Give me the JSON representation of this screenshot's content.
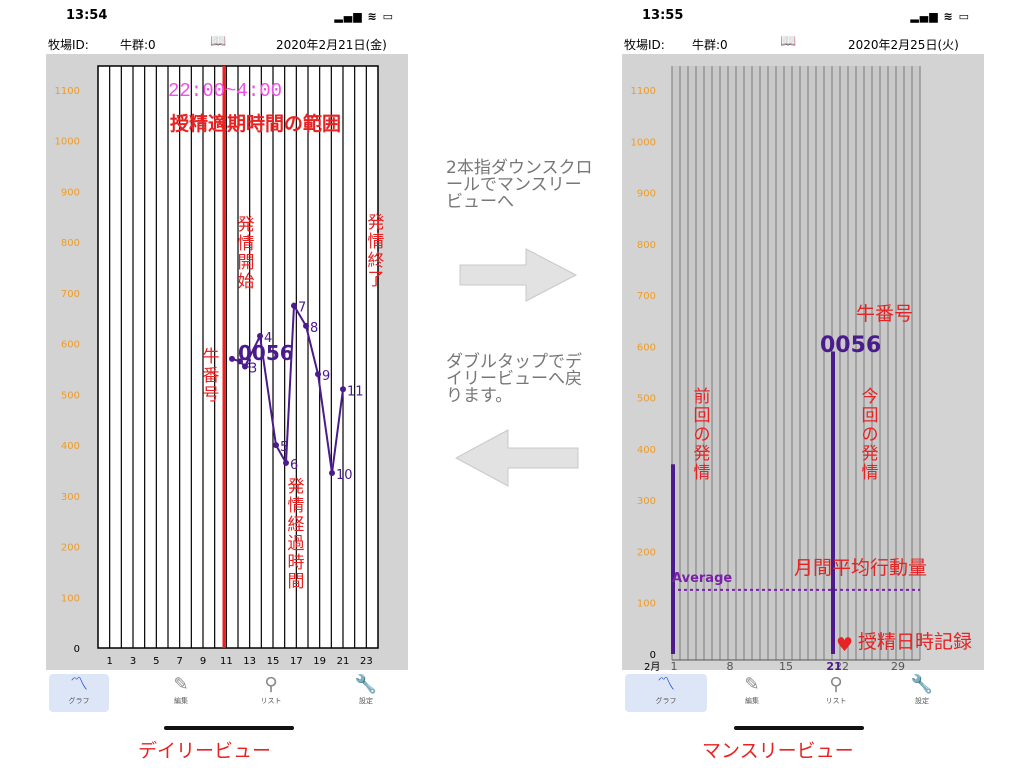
{
  "left_phone": {
    "status_time": "13:54",
    "farm_label": "牧場ID:",
    "herd_label": "牛群:0",
    "date": "2020年2月21日(金)",
    "y_ticks": [
      "1100",
      "1000",
      "900",
      "800",
      "700",
      "600",
      "500",
      "400",
      "300",
      "200",
      "100",
      "0"
    ],
    "x_ticks": [
      "1",
      "3",
      "5",
      "7",
      "9",
      "11",
      "13",
      "15",
      "17",
      "19",
      "21",
      "23"
    ],
    "range_time": "22:00~4:00",
    "range_label": "授精適期時間の範囲",
    "start_label": "発情開始",
    "end_label": "発情終了",
    "cow_no_label": "牛番号",
    "elapsed_label": "発情経過時間",
    "cow_id": "0056",
    "point_labels": [
      "2",
      "3",
      "4",
      "5",
      "6",
      "7",
      "8",
      "9",
      "10",
      "11"
    ],
    "tabs": [
      "グラフ",
      "編集",
      "リスト",
      "設定"
    ],
    "caption": "デイリービュー"
  },
  "right_phone": {
    "status_time": "13:55",
    "farm_label": "牧場ID:",
    "herd_label": "牛群:0",
    "date": "2020年2月25日(火)",
    "y_ticks": [
      "1100",
      "1000",
      "900",
      "800",
      "700",
      "600",
      "500",
      "400",
      "300",
      "200",
      "100",
      "0"
    ],
    "x_month": "2月",
    "x_ticks": [
      "1",
      "8",
      "15",
      "22",
      "29"
    ],
    "x_highlight": "21",
    "cow_no_label": "牛番号",
    "cow_id": "0056",
    "prev_label": "前回の発情",
    "curr_label": "今回の発情",
    "avg_text": "Average",
    "avg_label": "月間平均行動量",
    "record_label": "授精日時記録",
    "heart_icon": "♥",
    "tabs": [
      "グラフ",
      "編集",
      "リスト",
      "設定"
    ],
    "caption": "マンスリービュー"
  },
  "hints": {
    "to_monthly": "2本指ダウンスクロールでマンスリービューへ",
    "to_daily": "ダブルタップでデイリービューへ戻ります。"
  },
  "chart_data": [
    {
      "type": "line",
      "x": [
        1,
        2,
        3,
        4,
        5,
        6,
        7,
        8,
        9,
        10,
        11
      ],
      "series": [
        {
          "values": [
            570,
            565,
            555,
            615,
            400,
            365,
            675,
            635,
            540,
            345,
            510
          ]
        }
      ],
      "ylim": [
        0,
        1150
      ],
      "x_tick_labels": [
        "1",
        "3",
        "5",
        "7",
        "9",
        "11",
        "13",
        "15",
        "17",
        "19",
        "21",
        "23"
      ],
      "vertical_marker_x": 10,
      "grid": true
    },
    {
      "type": "bar",
      "categories": [
        "1",
        "21"
      ],
      "values": [
        370,
        590
      ],
      "ylim": [
        0,
        1150
      ],
      "average": 125,
      "x_tick_labels": [
        "1",
        "8",
        "15",
        "22",
        "29"
      ],
      "grid": true
    }
  ],
  "colors": {
    "accent_red": "#e82222",
    "series_purple": "#4b1a8c",
    "tick_orange": "#f29b21",
    "range_magenta": "#f14ee6",
    "avg_purple": "#7a1fa8",
    "chart_bg": "#d3d3d3",
    "tab_active_bg": "#dde6f7",
    "tab_active_icon": "#1e4fd8"
  }
}
